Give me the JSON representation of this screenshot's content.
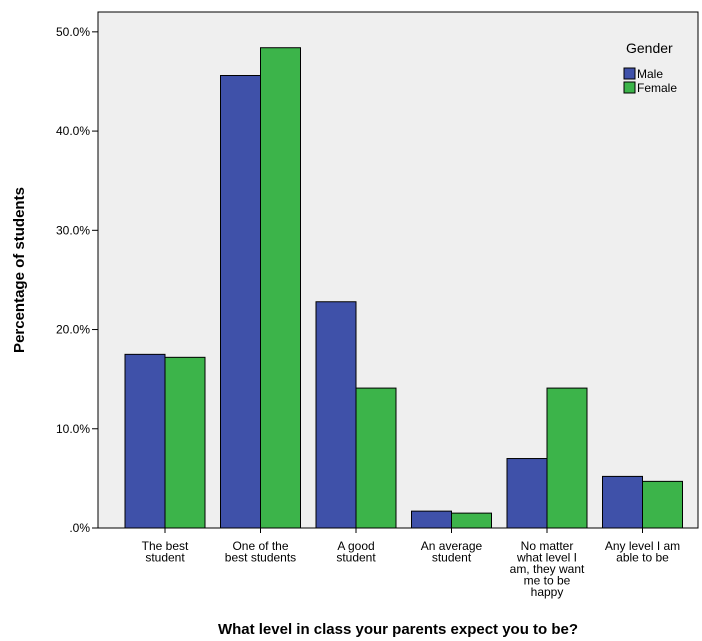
{
  "chart_data": {
    "type": "bar",
    "title": "",
    "xlabel": "What level in class your parents expect you to be?",
    "ylabel": "Percentage of students",
    "ylim": [
      0,
      52
    ],
    "yticks": [
      0,
      10,
      20,
      30,
      40,
      50
    ],
    "ytick_labels": [
      ".0%",
      "10.0%",
      "20.0%",
      "30.0%",
      "40.0%",
      "50.0%"
    ],
    "grid": false,
    "legend_position": "top-right",
    "legend_title": "Gender",
    "categories": [
      [
        "The best",
        "student"
      ],
      [
        "One of the",
        "best students"
      ],
      [
        "A good",
        "student"
      ],
      [
        "An average",
        "student"
      ],
      [
        "No matter",
        "what level I",
        "am, they want",
        "me to be",
        "happy"
      ],
      [
        "Any level I am",
        "able to be"
      ]
    ],
    "series": [
      {
        "name": "Male",
        "color": "#3f51a9",
        "values": [
          17.5,
          45.6,
          22.8,
          1.7,
          7.0,
          5.2
        ]
      },
      {
        "name": "Female",
        "color": "#3cb44a",
        "values": [
          17.2,
          48.4,
          14.1,
          1.5,
          14.1,
          4.7
        ]
      }
    ],
    "plot_background": "#efefef"
  }
}
